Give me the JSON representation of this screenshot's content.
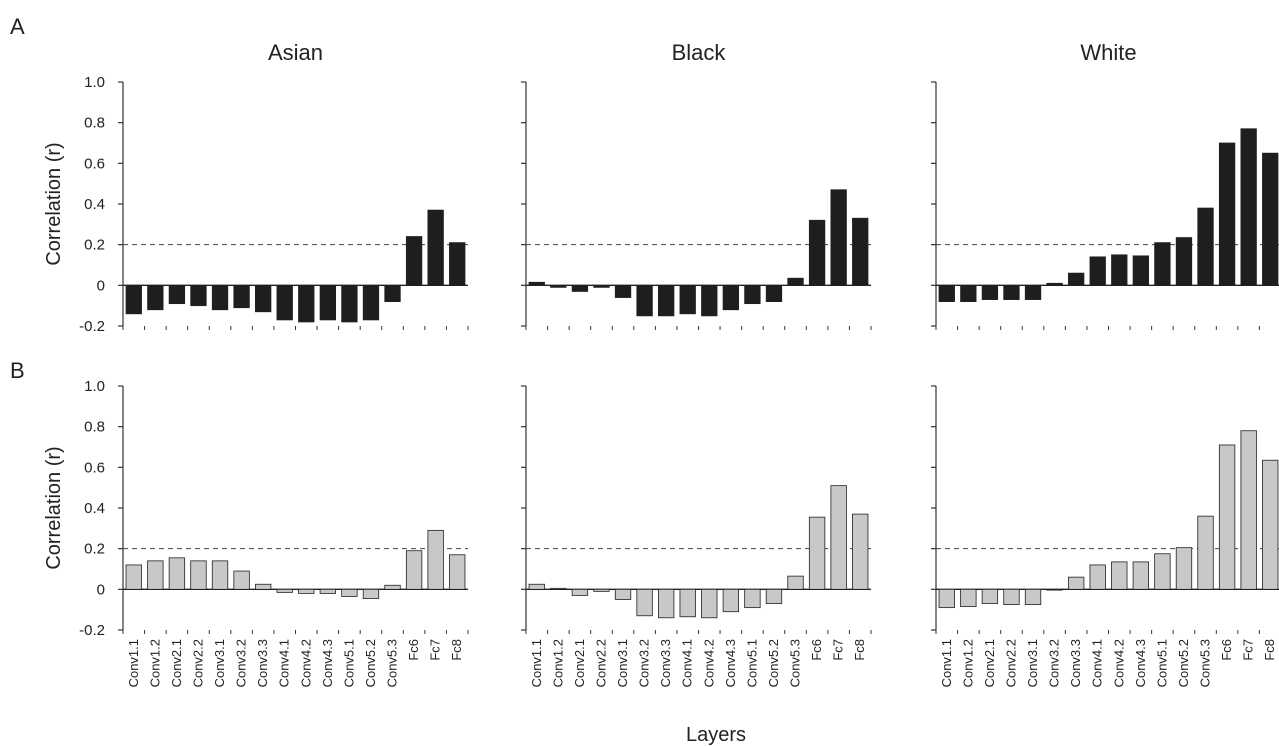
{
  "figure": {
    "panel_letters": [
      "A",
      "B"
    ],
    "x_axis_title": "Layers",
    "y_axis_title": "Correlation (r)",
    "column_titles": [
      "Asian",
      "Black",
      "White"
    ]
  },
  "chart_data": [
    {
      "type": "bar",
      "panel": "A",
      "title": "Asian",
      "xlabel": "",
      "ylabel": "Correlation (r)",
      "ylim": [
        -0.2,
        1.0
      ],
      "yticks": [
        "-0.2",
        "0",
        "0.2",
        "0.4",
        "0.6",
        "0.8",
        "1.0"
      ],
      "reference_line": 0.2,
      "bar_color": "#1e1e1e",
      "categories": [
        "Conv1.1",
        "Conv1.2",
        "Conv2.1",
        "Conv2.2",
        "Conv3.1",
        "Conv3.2",
        "Conv3.3",
        "Conv4.1",
        "Conv4.2",
        "Conv4.3",
        "Conv5.1",
        "Conv5.2",
        "Conv5.3",
        "Fc6",
        "Fc7",
        "Fc8"
      ],
      "values": [
        -0.14,
        -0.12,
        -0.09,
        -0.1,
        -0.12,
        -0.11,
        -0.13,
        -0.17,
        -0.18,
        -0.17,
        -0.18,
        -0.17,
        -0.08,
        0.24,
        0.37,
        0.21
      ]
    },
    {
      "type": "bar",
      "panel": "A",
      "title": "Black",
      "xlabel": "",
      "ylabel": "",
      "ylim": [
        -0.2,
        1.0
      ],
      "reference_line": 0.2,
      "bar_color": "#1e1e1e",
      "categories": [
        "Conv1.1",
        "Conv1.2",
        "Conv2.1",
        "Conv2.2",
        "Conv3.1",
        "Conv3.2",
        "Conv3.3",
        "Conv4.1",
        "Conv4.2",
        "Conv4.3",
        "Conv5.1",
        "Conv5.2",
        "Conv5.3",
        "Fc6",
        "Fc7",
        "Fc8"
      ],
      "values": [
        0.015,
        -0.01,
        -0.03,
        -0.01,
        -0.06,
        -0.15,
        -0.15,
        -0.14,
        -0.15,
        -0.12,
        -0.09,
        -0.08,
        0.035,
        0.32,
        0.47,
        0.33
      ]
    },
    {
      "type": "bar",
      "panel": "A",
      "title": "White",
      "xlabel": "",
      "ylabel": "",
      "ylim": [
        -0.2,
        1.0
      ],
      "reference_line": 0.2,
      "bar_color": "#1e1e1e",
      "categories": [
        "Conv1.1",
        "Conv1.2",
        "Conv2.1",
        "Conv2.2",
        "Conv3.1",
        "Conv3.2",
        "Conv3.3",
        "Conv4.1",
        "Conv4.2",
        "Conv4.3",
        "Conv5.1",
        "Conv5.2",
        "Conv5.3",
        "Fc6",
        "Fc7",
        "Fc8"
      ],
      "values": [
        -0.08,
        -0.08,
        -0.07,
        -0.07,
        -0.07,
        0.01,
        0.06,
        0.14,
        0.15,
        0.145,
        0.21,
        0.235,
        0.38,
        0.7,
        0.77,
        0.65
      ]
    },
    {
      "type": "bar",
      "panel": "B",
      "title": "",
      "xlabel": "",
      "ylabel": "Correlation (r)",
      "ylim": [
        -0.2,
        1.0
      ],
      "yticks": [
        "-0.2",
        "0",
        "0.2",
        "0.4",
        "0.6",
        "0.8",
        "1.0"
      ],
      "reference_line": 0.2,
      "bar_color": "#c8c8c8",
      "categories": [
        "Conv1.1",
        "Conv1.2",
        "Conv2.1",
        "Conv2.2",
        "Conv3.1",
        "Conv3.2",
        "Conv3.3",
        "Conv4.1",
        "Conv4.2",
        "Conv4.3",
        "Conv5.1",
        "Conv5.2",
        "Conv5.3",
        "Fc6",
        "Fc7",
        "Fc8"
      ],
      "values": [
        0.12,
        0.14,
        0.155,
        0.14,
        0.14,
        0.09,
        0.025,
        -0.015,
        -0.02,
        -0.02,
        -0.035,
        -0.045,
        0.02,
        0.19,
        0.29,
        0.17
      ]
    },
    {
      "type": "bar",
      "panel": "B",
      "title": "",
      "xlabel": "",
      "ylabel": "",
      "ylim": [
        -0.2,
        1.0
      ],
      "reference_line": 0.2,
      "bar_color": "#c8c8c8",
      "categories": [
        "Conv1.1",
        "Conv1.2",
        "Conv2.1",
        "Conv2.2",
        "Conv3.1",
        "Conv3.2",
        "Conv3.3",
        "Conv4.1",
        "Conv4.2",
        "Conv4.3",
        "Conv5.1",
        "Conv5.2",
        "Conv5.3",
        "Fc6",
        "Fc7",
        "Fc8"
      ],
      "values": [
        0.025,
        0.005,
        -0.03,
        -0.01,
        -0.05,
        -0.13,
        -0.14,
        -0.135,
        -0.14,
        -0.11,
        -0.09,
        -0.07,
        0.065,
        0.355,
        0.51,
        0.37
      ]
    },
    {
      "type": "bar",
      "panel": "B",
      "title": "",
      "xlabel": "",
      "ylabel": "",
      "ylim": [
        -0.2,
        1.0
      ],
      "reference_line": 0.2,
      "bar_color": "#c8c8c8",
      "categories": [
        "Conv1.1",
        "Conv1.2",
        "Conv2.1",
        "Conv2.2",
        "Conv3.1",
        "Conv3.2",
        "Conv3.3",
        "Conv4.1",
        "Conv4.2",
        "Conv4.3",
        "Conv5.1",
        "Conv5.2",
        "Conv5.3",
        "Fc6",
        "Fc7",
        "Fc8"
      ],
      "values": [
        -0.09,
        -0.085,
        -0.07,
        -0.075,
        -0.075,
        0.0,
        0.06,
        0.12,
        0.135,
        0.135,
        0.175,
        0.205,
        0.36,
        0.71,
        0.78,
        0.635
      ]
    }
  ]
}
